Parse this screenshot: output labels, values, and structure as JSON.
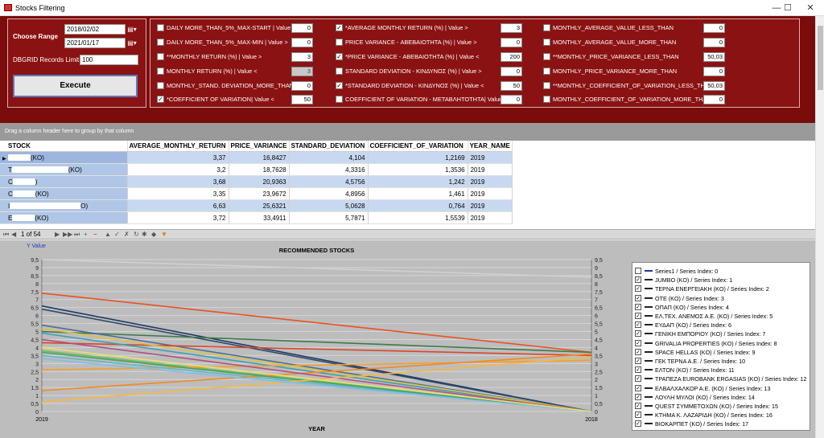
{
  "window": {
    "title": "Stocks Filtering",
    "minimize": "—",
    "maximize": "☐",
    "close": "✕"
  },
  "left": {
    "choose_range": "Choose Range",
    "date_from": "2018/02/02",
    "date_to": "2021/01/17",
    "records_label": "DBGRID Records Limit:",
    "records_value": "100",
    "execute": "Execute"
  },
  "filters": [
    {
      "label": "DAILY MORE_THAN_5%_MAX-START  | Value >",
      "value": "0",
      "checked": false
    },
    {
      "label": "DAILY MORE_THAN_5%_MAX-MIN    | Value >",
      "value": "0",
      "checked": false
    },
    {
      "label": "**MONTHLY RETURN (%) | Value >",
      "value": "3",
      "checked": false
    },
    {
      "label": "MONTHLY RETURN (%) | Value <",
      "value": "3",
      "checked": false,
      "disabled": true
    },
    {
      "label": "MONTHLY_STAND. DEVIATION_MORE_THAN",
      "value": "0",
      "checked": false
    },
    {
      "label": "*COEFFICIENT OF VARIATION| Value <",
      "value": "50",
      "checked": true
    },
    {
      "label": "*AVERAGE MONTHLY RETURN (%) | Value >",
      "value": "3",
      "checked": true
    },
    {
      "label": "PRICE VARIANCE - ΑΒΕΒΑΙΟΤΗΤΑ (%) | Value >",
      "value": "0",
      "checked": false
    },
    {
      "label": "*PRICE VARIANCE - ΑΒΕΒΑΙΟΤΗΤΑ (%) | Value <",
      "value": "200",
      "checked": true
    },
    {
      "label": "STANDARD DEVIATION - ΚΙΝΔΥΝΟΣ (%) | Value >",
      "value": "0",
      "checked": false
    },
    {
      "label": "*STANDARD DEVIATION - ΚΙΝΔΥΝΟΣ (%) | Value <",
      "value": "50",
      "checked": true
    },
    {
      "label": "COEFFICIENT OF VARIATION - ΜΕΤΑΒΛΗΤΟΤΗΤΑ| Value >",
      "value": "0",
      "checked": false
    },
    {
      "label": "MONTHLY_AVERAGE_VALUE_LESS_THAN",
      "value": "0",
      "checked": false
    },
    {
      "label": "MONTHLY_AVERAGE_VALUE_MORE_THAN",
      "value": "0",
      "checked": false
    },
    {
      "label": "**MONTHLY_PRICE_VARIANCE_LESS_THAN",
      "value": "50,03",
      "checked": false
    },
    {
      "label": "MONTHLY_PRICE_VARIANCE_MORE_THAN",
      "value": "0",
      "checked": false
    },
    {
      "label": "**MONTHLY_COEFFICIENT_OF_VARIATION_LESS_THAN",
      "value": "50,03",
      "checked": false
    },
    {
      "label": "MONTHLY_COEFFICIENT_OF_VARIATION_MORE_THAN",
      "value": "0",
      "checked": false
    }
  ],
  "group_hint": "Drag a column header here to group by that column",
  "grid": {
    "columns": [
      "STOCK",
      "AVERAGE_MONTHLY_RETURN",
      "PRICE_VARIANCE",
      "STANDARD_DEVIATION",
      "COEFFICIENT_OF_VARIATION",
      "YEAR_NAME"
    ],
    "rows": [
      {
        "stock_pre": "",
        "stock_suf": "(KO)",
        "c1": "3,37",
        "c2": "16,8427",
        "c3": "4,104",
        "c4": "1,2169",
        "c5": "2019"
      },
      {
        "stock_pre": "T",
        "stock_suf": "(KO)",
        "c1": "3,2",
        "c2": "18,7628",
        "c3": "4,3316",
        "c4": "1,3536",
        "c5": "2019"
      },
      {
        "stock_pre": "C",
        "stock_suf": ")",
        "c1": "3,68",
        "c2": "20,9363",
        "c3": "4,5756",
        "c4": "1,242",
        "c5": "2019"
      },
      {
        "stock_pre": "C",
        "stock_suf": "(KO)",
        "c1": "3,35",
        "c2": "23,9672",
        "c3": "4,8956",
        "c4": "1,461",
        "c5": "2019"
      },
      {
        "stock_pre": "I",
        "stock_suf": "O)",
        "c1": "6,63",
        "c2": "25,6321",
        "c3": "5,0628",
        "c4": "0,764",
        "c5": "2019"
      },
      {
        "stock_pre": "E",
        "stock_suf": "(KO)",
        "c1": "3,72",
        "c2": "33,4911",
        "c3": "5,7871",
        "c4": "1,5539",
        "c5": "2019"
      }
    ]
  },
  "pager": {
    "page": "1 of 54"
  },
  "chart_data": {
    "type": "line",
    "title": "RECOMMENDED STOCKS",
    "xlabel": "YEAR",
    "ylabel": "Y Value",
    "categories": [
      "2019",
      "2018"
    ],
    "ylim": [
      0,
      9.5
    ],
    "yticks": [
      "0",
      "0,5",
      "1",
      "1,5",
      "2",
      "2,5",
      "3",
      "3,5",
      "4",
      "4,5",
      "5",
      "5,5",
      "6",
      "6,5",
      "7",
      "7,5",
      "8",
      "8,5",
      "9",
      "9,5"
    ],
    "series": [
      {
        "name": "Series1",
        "values": [
          9.5,
          8.4
        ],
        "color": "#d0d0d0",
        "checked": false
      },
      {
        "name": "JUMBO (KO)",
        "values": [
          6.6,
          0
        ],
        "color": "#1f3a5f",
        "checked": true
      },
      {
        "name": "ΤΕΡΝΑ ΕΝΕΡΓΕΙΑΚΗ (KO)",
        "values": [
          7.4,
          3.7
        ],
        "color": "#e8531f",
        "checked": true
      },
      {
        "name": "ΟΤΕ (KO)",
        "values": [
          6.4,
          0
        ],
        "color": "#2e4a6e",
        "checked": true
      },
      {
        "name": "ΟΠΑΠ (KO)",
        "values": [
          5.0,
          3.7
        ],
        "color": "#3e7a4a",
        "checked": true
      },
      {
        "name": "ΕΛ.ΤΕΧ. ΑΝΕΜΟΣ Α.Ε. (KO)",
        "values": [
          5.4,
          0
        ],
        "color": "#4a6e9a",
        "checked": true
      },
      {
        "name": "ΕΥΔΑΠ (KO)",
        "values": [
          4.3,
          3.5
        ],
        "color": "#d9472b",
        "checked": true
      },
      {
        "name": "ΓΕΝΙΚΗ ΕΜΠΟΡΙΟΥ (KO)",
        "values": [
          4.9,
          0
        ],
        "color": "#3aa0b5",
        "checked": true
      },
      {
        "name": "GRIVALIA PROPERTIES (KO)",
        "values": [
          3.8,
          0
        ],
        "color": "#6fbf4a",
        "checked": true
      },
      {
        "name": "SPACE HELLAS (KO)",
        "values": [
          2.6,
          3.2
        ],
        "color": "#f0a030",
        "checked": true
      },
      {
        "name": "ΓΕΚ ΤΕΡΝΑ Α.Ε.",
        "values": [
          5.2,
          0
        ],
        "color": "#e0c040",
        "checked": true
      },
      {
        "name": "ΕΛΤΟΝ (KO)",
        "values": [
          3.5,
          0
        ],
        "color": "#5fb8c8",
        "checked": true
      },
      {
        "name": "ΤΡΑΠΕΖΑ EUROBANK ERGASIAS (KO)",
        "values": [
          1.3,
          3.6
        ],
        "color": "#f28a20",
        "checked": true
      },
      {
        "name": "ΕΛΒΑΛΧΑΛΚΟΡ Α.Ε. (KO)",
        "values": [
          4.5,
          0
        ],
        "color": "#b05080",
        "checked": true
      },
      {
        "name": "ΛΟΥΛΗ ΜΥΛΟΙ (KO)",
        "values": [
          3.7,
          0
        ],
        "color": "#4aa070",
        "checked": true
      },
      {
        "name": "QUEST ΣΥΜΜΕΤΟΧΩΝ (KO)",
        "values": [
          0.6,
          3.4
        ],
        "color": "#f5b840",
        "checked": true
      },
      {
        "name": "ΚΤΗΜΑ Κ. ΛΑΖΑΡΙΔΗ (KO)",
        "values": [
          3.3,
          0
        ],
        "color": "#80c0e0",
        "checked": true
      },
      {
        "name": "ΒΙΟΚΑΡΠΕΤ (KO)",
        "values": [
          4.0,
          0
        ],
        "color": "#e8e070",
        "checked": true
      }
    ]
  }
}
